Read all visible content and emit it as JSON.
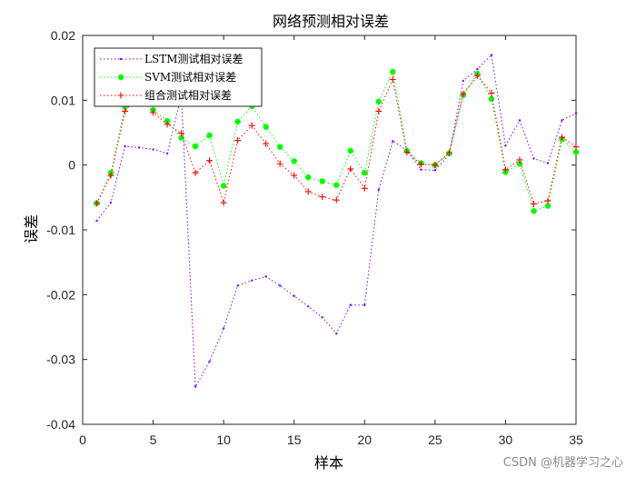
{
  "chart_data": {
    "type": "line",
    "title": "网络预测相对误差",
    "xlabel": "样本",
    "ylabel": "误差",
    "xlim": [
      0,
      35
    ],
    "ylim": [
      -0.04,
      0.02
    ],
    "xticks": [
      0,
      5,
      10,
      15,
      20,
      25,
      30,
      35
    ],
    "yticks": [
      -0.04,
      -0.03,
      -0.02,
      -0.01,
      0,
      0.01,
      0.02
    ],
    "ytick_labels": [
      "-0.04",
      "-0.03",
      "-0.02",
      "-0.01",
      "0",
      "0.01",
      "0.02"
    ],
    "grid": false,
    "legend_position": "top-left",
    "x": [
      1,
      2,
      3,
      4,
      5,
      6,
      7,
      8,
      9,
      10,
      11,
      12,
      13,
      14,
      15,
      16,
      17,
      18,
      19,
      20,
      21,
      22,
      23,
      24,
      25,
      26,
      27,
      28,
      29,
      30,
      31,
      32,
      33,
      34,
      35
    ],
    "series": [
      {
        "name": "LSTM测试相对误差",
        "color": "#7f00ff",
        "marker": "dot",
        "values": [
          -0.0086,
          -0.0058,
          0.0029,
          0.0027,
          0.0024,
          0.0018,
          0.0107,
          -0.0342,
          -0.0303,
          -0.0252,
          -0.0186,
          -0.0178,
          -0.0172,
          -0.0186,
          -0.0202,
          -0.0218,
          -0.0235,
          -0.026,
          -0.0216,
          -0.0216,
          -0.0038,
          0.0037,
          0.0023,
          -0.0007,
          -0.0008,
          0.0016,
          0.013,
          0.0148,
          0.017,
          0.003,
          0.0069,
          0.001,
          0.0003,
          0.0069,
          0.008
        ]
      },
      {
        "name": "SVM测试相对误差",
        "color": "#00ff00",
        "marker": "circle",
        "values": [
          -0.0059,
          -0.0012,
          0.009,
          0.0123,
          0.0085,
          0.0068,
          0.0042,
          0.0029,
          0.0046,
          -0.0032,
          0.0067,
          0.0091,
          0.0059,
          0.0028,
          0.0006,
          -0.0019,
          -0.0025,
          -0.0031,
          0.0022,
          -0.0012,
          0.0098,
          0.0144,
          0.0022,
          0.0003,
          0.0,
          0.0018,
          0.0108,
          0.0141,
          0.0102,
          -0.0011,
          0.0002,
          -0.0071,
          -0.0063,
          0.004,
          0.002
        ]
      },
      {
        "name": "组合测试相对误差",
        "color": "#ff0000",
        "marker": "plus",
        "values": [
          -0.0059,
          -0.0016,
          0.0083,
          0.011,
          0.0081,
          0.0063,
          0.0049,
          -0.0012,
          0.0007,
          -0.0058,
          0.0038,
          0.0061,
          0.0033,
          0.0002,
          -0.0016,
          -0.0041,
          -0.0049,
          -0.0054,
          -0.0006,
          -0.0036,
          0.0083,
          0.0132,
          0.002,
          0.0001,
          0.0,
          0.0019,
          0.011,
          0.0138,
          0.0111,
          -0.0007,
          0.0008,
          -0.006,
          -0.0055,
          0.0043,
          0.0028
        ]
      }
    ]
  },
  "watermark": "CSDN @机器学习之心"
}
